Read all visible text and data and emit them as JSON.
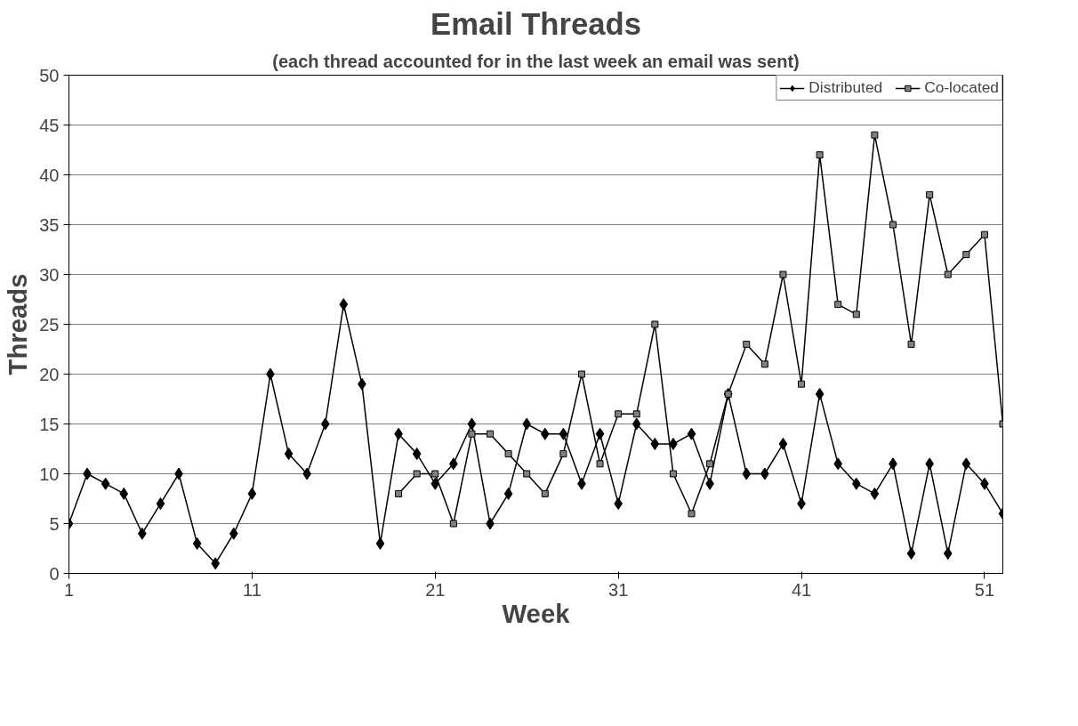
{
  "chart_data": {
    "type": "line",
    "title": "Email Threads",
    "subtitle": "(each thread accounted for in the last week an email was sent)",
    "xlabel": "Week",
    "ylabel": "Threads",
    "x": [
      1,
      2,
      3,
      4,
      5,
      6,
      7,
      8,
      9,
      10,
      11,
      12,
      13,
      14,
      15,
      16,
      17,
      18,
      19,
      20,
      21,
      22,
      23,
      24,
      25,
      26,
      27,
      28,
      29,
      30,
      31,
      32,
      33,
      34,
      35,
      36,
      37,
      38,
      39,
      40,
      41,
      42,
      43,
      44,
      45,
      46,
      47,
      48,
      49,
      50,
      51,
      52
    ],
    "series": [
      {
        "name": "Distributed",
        "color": "#000000",
        "marker": "diamond",
        "values": [
          5,
          10,
          9,
          8,
          4,
          7,
          10,
          3,
          1,
          4,
          8,
          20,
          12,
          10,
          15,
          27,
          19,
          3,
          14,
          12,
          9,
          11,
          15,
          5,
          8,
          15,
          14,
          14,
          9,
          14,
          7,
          15,
          13,
          13,
          14,
          9,
          18,
          10,
          10,
          13,
          7,
          18,
          11,
          9,
          8,
          11,
          2,
          11,
          2,
          11,
          9,
          6
        ]
      },
      {
        "name": "Co-located",
        "color": "#000000",
        "marker": "square",
        "values": [
          null,
          null,
          null,
          null,
          null,
          null,
          null,
          null,
          null,
          null,
          null,
          null,
          null,
          null,
          null,
          null,
          null,
          null,
          8,
          10,
          10,
          5,
          14,
          14,
          12,
          10,
          8,
          12,
          20,
          11,
          16,
          16,
          25,
          10,
          6,
          11,
          18,
          23,
          21,
          30,
          19,
          42,
          27,
          26,
          44,
          35,
          23,
          38,
          30,
          32,
          34,
          15
        ]
      }
    ],
    "xlim": [
      1,
      52
    ],
    "xticks": [
      1,
      11,
      21,
      31,
      41,
      51
    ],
    "ylim": [
      0,
      50
    ],
    "yticks": [
      0,
      5,
      10,
      15,
      20,
      25,
      30,
      35,
      40,
      45,
      50
    ],
    "grid": "y",
    "legend": "top right",
    "line_style": "solid"
  }
}
